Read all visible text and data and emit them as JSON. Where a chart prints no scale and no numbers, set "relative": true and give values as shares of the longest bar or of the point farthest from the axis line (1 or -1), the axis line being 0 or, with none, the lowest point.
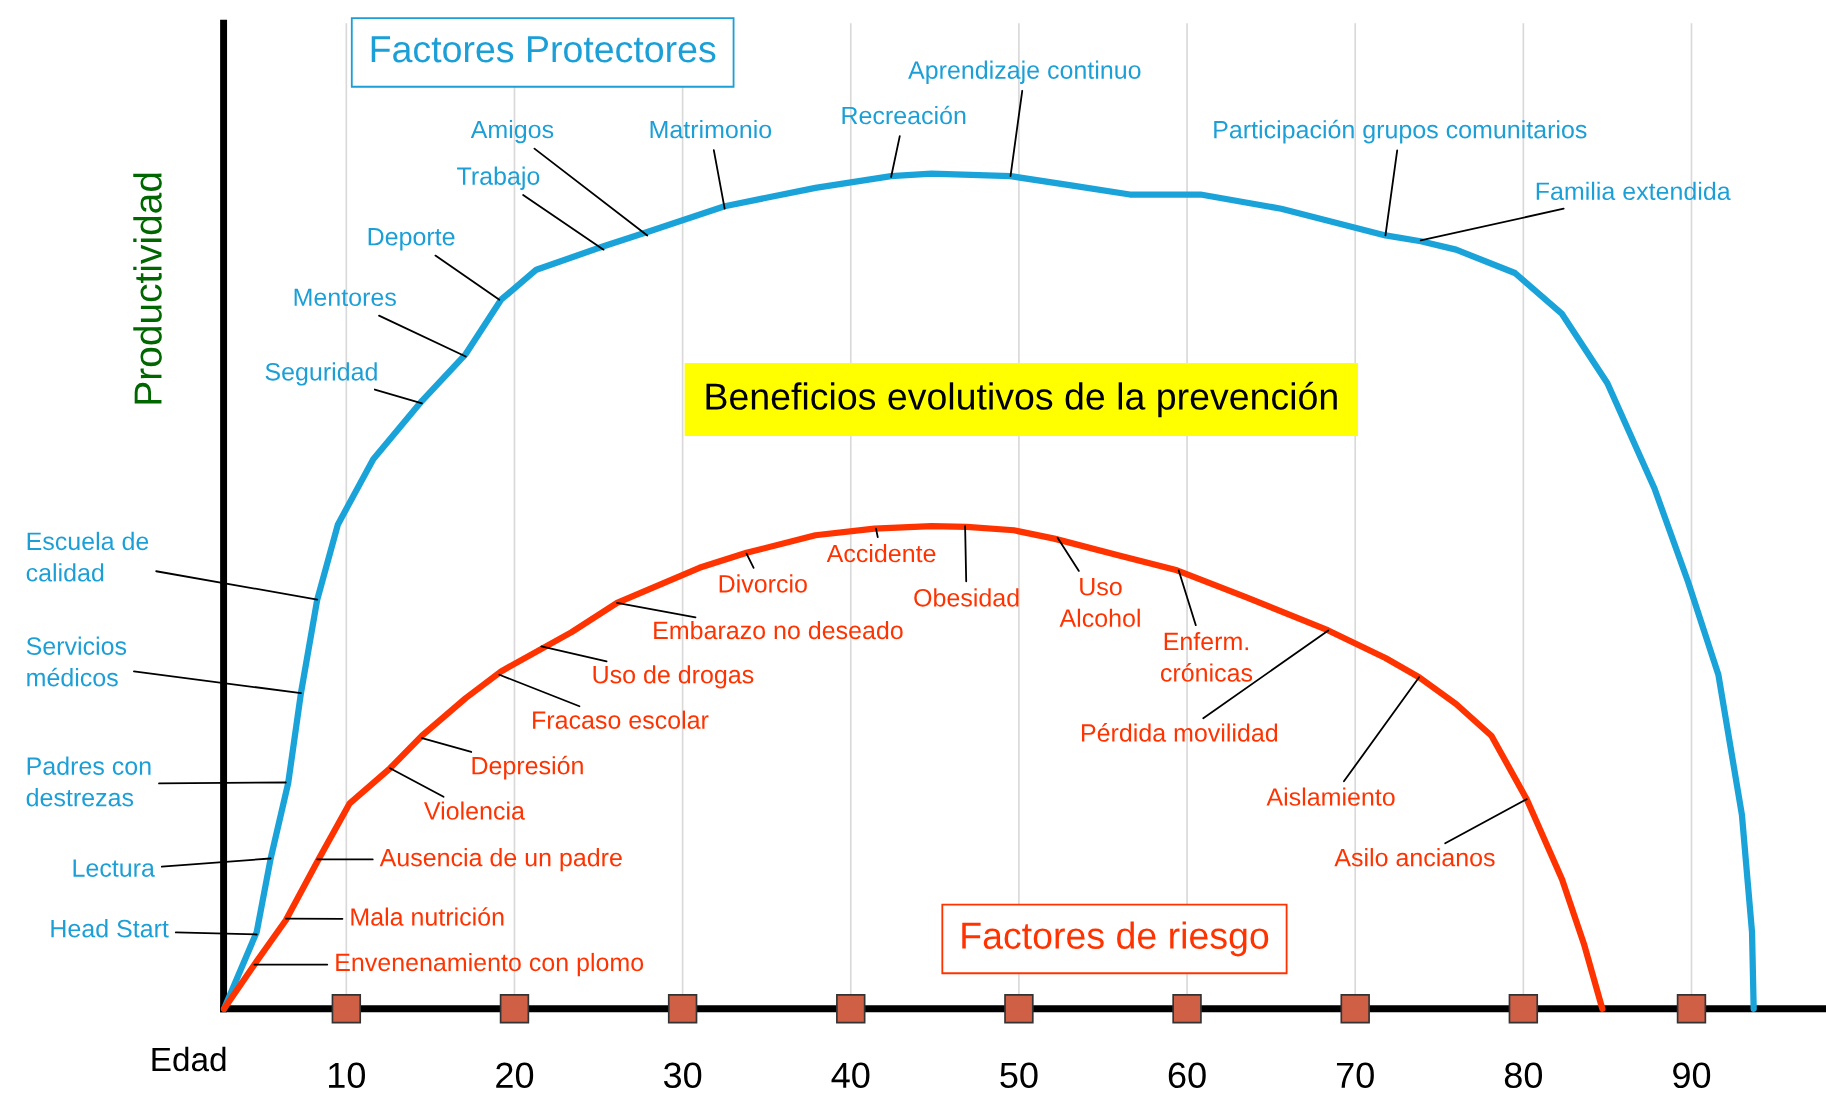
{
  "chart_data": {
    "type": "line",
    "relative": true,
    "title": "Beneficios evolutivos de la prevención",
    "xlabel": "Edad",
    "ylabel": "Productividad",
    "xlim": [
      2.7,
      98
    ],
    "xticks": [
      10,
      20,
      30,
      40,
      50,
      60,
      70,
      80,
      90
    ],
    "grid": "x",
    "legend": false,
    "marker": "none",
    "line_style": "solid",
    "tick_labels": "x",
    "series": [
      {
        "color": "#1aa3d9",
        "x": [
          2.73,
          4.67,
          5.5,
          6.54,
          7.3,
          8.27,
          9.5,
          11.6,
          14.5,
          17.1,
          19.2,
          21.3,
          25.3,
          27.9,
          32.5,
          37.9,
          42.4,
          44.8,
          49.5,
          53.1,
          56.6,
          60.8,
          65.6,
          71.8,
          73.9,
          76.0,
          79.5,
          82.3,
          85.0,
          87.8,
          89.8,
          91.6,
          93.0,
          93.6,
          93.7
        ],
        "values": [
          0,
          0.092,
          0.18,
          0.27,
          0.378,
          0.49,
          0.58,
          0.658,
          0.728,
          0.784,
          0.849,
          0.885,
          0.913,
          0.93,
          0.961,
          0.983,
          0.997,
          1.0,
          0.997,
          0.986,
          0.975,
          0.975,
          0.958,
          0.926,
          0.919,
          0.909,
          0.881,
          0.832,
          0.749,
          0.623,
          0.511,
          0.4,
          0.232,
          0.092,
          0
        ]
      },
      {
        "color": "#ff3300",
        "x": [
          2.73,
          4.67,
          6.4,
          8.27,
          10.2,
          12.6,
          14.5,
          17.1,
          19.2,
          23.4,
          26.1,
          31.0,
          33.8,
          37.9,
          41.4,
          44.8,
          46.9,
          49.7,
          52.1,
          55.9,
          59.4,
          63.5,
          68.4,
          71.8,
          73.8,
          76.0,
          78.1,
          80.2,
          82.3,
          83.6,
          84.7
        ],
        "values": [
          0,
          0.057,
          0.106,
          0.176,
          0.246,
          0.288,
          0.327,
          0.372,
          0.404,
          0.451,
          0.486,
          0.528,
          0.546,
          0.567,
          0.575,
          0.578,
          0.577,
          0.573,
          0.563,
          0.543,
          0.525,
          0.493,
          0.453,
          0.42,
          0.397,
          0.365,
          0.327,
          0.251,
          0.155,
          0.078,
          0
        ]
      }
    ],
    "annotations": [
      {
        "text": "Head Start",
        "x": 4.67,
        "y": 0.089
      },
      {
        "text": "Lectura",
        "x": 5.5,
        "y": 0.18
      },
      {
        "text": "Padres con\ndestrezas",
        "x": 6.4,
        "y": 0.271
      },
      {
        "text": "Servicios\nmédicos",
        "x": 7.3,
        "y": 0.378
      },
      {
        "text": "Escuela de\ncalidad",
        "x": 8.27,
        "y": 0.49
      },
      {
        "text": "Seguridad",
        "x": 14.5,
        "y": 0.725
      },
      {
        "text": "Mentores",
        "x": 17.1,
        "y": 0.781
      },
      {
        "text": "Deporte",
        "x": 19.1,
        "y": 0.849
      },
      {
        "text": "Trabajo",
        "x": 25.3,
        "y": 0.909
      },
      {
        "text": "Amigos",
        "x": 27.9,
        "y": 0.926
      },
      {
        "text": "Matrimonio",
        "x": 32.5,
        "y": 0.958
      },
      {
        "text": "Recreación",
        "x": 42.4,
        "y": 0.996
      },
      {
        "text": "Aprendizaje continuo",
        "x": 49.5,
        "y": 0.997
      },
      {
        "text": "Participación grupos comunitarios",
        "x": 71.8,
        "y": 0.926
      },
      {
        "text": "Familia extendida",
        "x": 73.9,
        "y": 0.92
      },
      {
        "text": "Envenenamiento con plomo",
        "x": 4.53,
        "y": 0.053
      },
      {
        "text": "Mala nutrición",
        "x": 6.4,
        "y": 0.108
      },
      {
        "text": "Ausencia de un padre",
        "x": 8.27,
        "y": 0.179
      },
      {
        "text": "Violencia",
        "x": 12.6,
        "y": 0.288
      },
      {
        "text": "Depresión",
        "x": 14.5,
        "y": 0.324
      },
      {
        "text": "Fracaso escolar",
        "x": 19.1,
        "y": 0.4
      },
      {
        "text": "Uso de drogas",
        "x": 21.6,
        "y": 0.434
      },
      {
        "text": "Embarazo no deseado",
        "x": 26.1,
        "y": 0.486
      },
      {
        "text": "Divorcio",
        "x": 33.8,
        "y": 0.545
      },
      {
        "text": "Accidente",
        "x": 41.5,
        "y": 0.575
      },
      {
        "text": "Obesidad",
        "x": 46.8,
        "y": 0.578
      },
      {
        "text": "Uso\nAlcohol",
        "x": 52.3,
        "y": 0.564
      },
      {
        "text": "Enferm.\ncrónicas",
        "x": 59.5,
        "y": 0.525
      },
      {
        "text": "Pérdida movilidad",
        "x": 68.4,
        "y": 0.453
      },
      {
        "text": "Aislamiento",
        "x": 73.8,
        "y": 0.397
      },
      {
        "text": "Asilo ancianos",
        "x": 80.2,
        "y": 0.251
      },
      "Factores Protectores",
      "Factores de riesgo"
    ]
  }
}
